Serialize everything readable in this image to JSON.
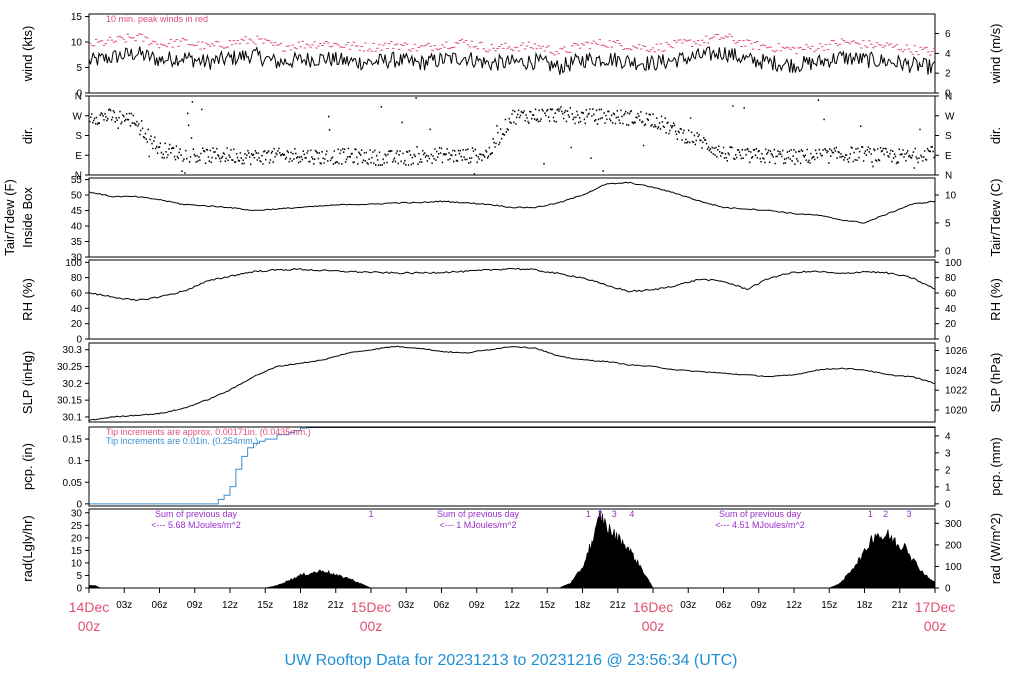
{
  "title": "UW Rooftop Data for 20231213  to  20231216 @ 23:56:34  (UTC)",
  "colors": {
    "peak": "#e0507a",
    "purple": "#9a2ec8",
    "blue": "#3a8fd0",
    "title": "#1f8fd6",
    "day": "#e05070",
    "pink": "#e0507a"
  },
  "chart_data": {
    "type": "line",
    "x_axis": {
      "hours": [
        0,
        3,
        6,
        9,
        12,
        15,
        18,
        21,
        24,
        27,
        30,
        33,
        36,
        39,
        42,
        45,
        48,
        51,
        54,
        57,
        60,
        63,
        66,
        69,
        72
      ],
      "range_hours": [
        0,
        72
      ],
      "minor_labels": [
        "03z",
        "06z",
        "09z",
        "12z",
        "15z",
        "18z",
        "21z",
        "03z",
        "06z",
        "09z",
        "12z",
        "15z",
        "18z",
        "21z",
        "03z",
        "06z",
        "09z",
        "12z",
        "15z",
        "18z",
        "21z"
      ],
      "minor_label_hours": [
        3,
        6,
        9,
        12,
        15,
        18,
        21,
        27,
        30,
        33,
        36,
        39,
        42,
        45,
        51,
        54,
        57,
        60,
        63,
        66,
        69
      ],
      "day_labels": [
        {
          "hour": 0,
          "date": "14Dec",
          "time": "00z"
        },
        {
          "hour": 24,
          "date": "15Dec",
          "time": "00z"
        },
        {
          "hour": 48,
          "date": "16Dec",
          "time": "00z"
        },
        {
          "hour": 72,
          "date": "17Dec",
          "time": "00z"
        }
      ]
    },
    "panels": [
      {
        "name": "wind",
        "ylabel_left": "wind (kts)",
        "ylabel_right": "wind (m/s)",
        "left_ticks": [
          0,
          5,
          10,
          15
        ],
        "right_ticks": [
          0,
          2,
          4,
          6
        ],
        "ylim": [
          0,
          15.5
        ],
        "annotation": "10 min. peak winds in red",
        "series": [
          {
            "name": "wind",
            "x": [
              0,
              2,
              4,
              6,
              8,
              10,
              12,
              14,
              16,
              18,
              20,
              22,
              24,
              26,
              28,
              30,
              32,
              34,
              36,
              38,
              40,
              42,
              44,
              46,
              48,
              50,
              52,
              54,
              56,
              58,
              60,
              62,
              64,
              66,
              68,
              70,
              72
            ],
            "y": [
              6.2,
              7.0,
              7.8,
              6.5,
              7.0,
              6.0,
              6.8,
              7.5,
              6.0,
              6.5,
              6.8,
              6.2,
              6.0,
              6.5,
              5.8,
              6.5,
              7.0,
              5.8,
              6.0,
              6.2,
              5.0,
              6.5,
              6.8,
              6.2,
              5.8,
              6.5,
              7.2,
              8.0,
              6.5,
              6.0,
              5.5,
              6.0,
              7.0,
              6.5,
              6.2,
              5.5,
              5.0
            ]
          },
          {
            "name": "10 min. peak winds",
            "x": [
              0,
              2,
              4,
              6,
              8,
              10,
              12,
              14,
              16,
              18,
              20,
              22,
              24,
              26,
              28,
              30,
              32,
              34,
              36,
              38,
              40,
              42,
              44,
              46,
              48,
              50,
              52,
              54,
              56,
              58,
              60,
              62,
              64,
              66,
              68,
              70,
              72
            ],
            "y": [
              9.5,
              10.2,
              11.0,
              9.5,
              10.0,
              9.0,
              9.8,
              10.5,
              9.0,
              9.5,
              9.8,
              9.2,
              9.0,
              9.5,
              8.8,
              9.5,
              10.0,
              8.8,
              9.0,
              9.2,
              8.0,
              9.5,
              9.8,
              9.2,
              8.8,
              9.5,
              10.2,
              11.0,
              9.5,
              9.0,
              8.5,
              9.0,
              10.0,
              9.5,
              9.2,
              8.5,
              8.0
            ]
          }
        ]
      },
      {
        "name": "dir",
        "ylabel_left": "dir.",
        "ylabel_right": "dir.",
        "left_ticks": [
          "N",
          "E",
          "S",
          "W",
          "N"
        ],
        "right_ticks": [
          "N",
          "E",
          "S",
          "W",
          "N"
        ],
        "ylim": [
          0,
          360
        ],
        "series": [
          {
            "name": "direction",
            "x": [
              0,
              2,
              3,
              4,
              6,
              8,
              10,
              12,
              14,
              16,
              18,
              20,
              22,
              24,
              26,
              28,
              30,
              32,
              34,
              36,
              38,
              40,
              42,
              44,
              46,
              48,
              50,
              52,
              54,
              56,
              58,
              60,
              62,
              64,
              66,
              68,
              70,
              72
            ],
            "y": [
              270,
              270,
              265,
              250,
              120,
              100,
              90,
              95,
              85,
              90,
              95,
              85,
              90,
              85,
              80,
              85,
              95,
              90,
              100,
              270,
              275,
              280,
              270,
              270,
              265,
              260,
              200,
              160,
              100,
              90,
              90,
              85,
              90,
              95,
              100,
              90,
              85,
              120
            ]
          }
        ]
      },
      {
        "name": "temp",
        "ylabel_left": "Tair/Tdew (F)",
        "ylabel_left2": "Inside Box",
        "ylabel_right": "Tair/Tdew (C)",
        "left_ticks": [
          30,
          35,
          40,
          45,
          50,
          55
        ],
        "right_ticks": [
          0,
          5,
          10
        ],
        "ylim": [
          30,
          55.5
        ],
        "series": [
          {
            "name": "Tair",
            "x": [
              0,
              2,
              4,
              6,
              8,
              10,
              12,
              14,
              16,
              18,
              20,
              22,
              24,
              26,
              28,
              30,
              32,
              34,
              36,
              38,
              40,
              42,
              44,
              46,
              48,
              50,
              52,
              54,
              56,
              58,
              60,
              62,
              64,
              66,
              68,
              70,
              72
            ],
            "y": [
              51,
              49.5,
              49.5,
              48.5,
              47,
              46.5,
              46,
              45,
              45.5,
              46,
              46.5,
              47,
              47,
              47.5,
              47.5,
              48,
              47.5,
              47,
              46,
              46,
              47.5,
              50,
              53.5,
              54,
              52.5,
              50.5,
              48,
              46,
              45.5,
              45,
              44,
              43.5,
              42,
              41,
              44,
              47,
              48
            ]
          }
        ]
      },
      {
        "name": "rh",
        "ylabel_left": "RH (%)",
        "ylabel_right": "RH (%)",
        "left_ticks": [
          0,
          20,
          40,
          60,
          80,
          100
        ],
        "right_ticks": [
          0,
          20,
          40,
          60,
          80,
          100
        ],
        "ylim": [
          0,
          103
        ],
        "series": [
          {
            "name": "RH",
            "x": [
              0,
              2,
              4,
              6,
              8,
              10,
              12,
              14,
              16,
              18,
              20,
              22,
              24,
              26,
              28,
              30,
              32,
              34,
              36,
              38,
              40,
              42,
              44,
              46,
              48,
              50,
              52,
              54,
              56,
              58,
              60,
              62,
              64,
              66,
              68,
              70,
              72
            ],
            "y": [
              60,
              55,
              50,
              55,
              62,
              75,
              82,
              88,
              90,
              91,
              89,
              88,
              87,
              86,
              86,
              87,
              88,
              90,
              92,
              90,
              85,
              80,
              70,
              62,
              64,
              70,
              78,
              75,
              65,
              80,
              87,
              88,
              85,
              88,
              86,
              80,
              65
            ]
          }
        ]
      },
      {
        "name": "slp",
        "ylabel_left": "SLP (inHg)",
        "ylabel_right": "SLP (hPa)",
        "left_ticks": [
          30.1,
          30.15,
          30.2,
          30.25,
          30.3
        ],
        "right_ticks": [
          1020,
          1022,
          1024,
          1026
        ],
        "ylim": [
          30.085,
          30.32
        ],
        "series": [
          {
            "name": "SLP",
            "x": [
              0,
              2,
              4,
              6,
              8,
              10,
              12,
              14,
              16,
              18,
              20,
              22,
              24,
              26,
              28,
              30,
              32,
              34,
              36,
              38,
              40,
              42,
              44,
              46,
              48,
              50,
              52,
              54,
              56,
              58,
              60,
              62,
              64,
              66,
              68,
              70,
              72
            ],
            "y": [
              30.09,
              30.1,
              30.105,
              30.11,
              30.125,
              30.15,
              30.18,
              30.22,
              30.25,
              30.26,
              30.27,
              30.29,
              30.3,
              30.31,
              30.305,
              30.295,
              30.29,
              30.3,
              30.31,
              30.305,
              30.28,
              30.27,
              30.265,
              30.255,
              30.25,
              30.24,
              30.235,
              30.23,
              30.225,
              30.22,
              30.225,
              30.24,
              30.245,
              30.24,
              30.225,
              30.22,
              30.2
            ]
          }
        ]
      },
      {
        "name": "pcp",
        "ylabel_left": "pcp. (in)",
        "ylabel_right": "pcp. (mm)",
        "left_ticks": [
          0,
          0.05,
          0.1,
          0.15
        ],
        "right_ticks": [
          0,
          1,
          2,
          3,
          4
        ],
        "ylim": [
          -0.005,
          0.178
        ],
        "annotation_pink": "Tip increments are approx. 0.00171in. (0.0435mm.)",
        "annotation_blue": "Tip increments are 0.01in. (0.254mm.)",
        "series": [
          {
            "name": "precip",
            "x": [
              0,
              10.5,
              11,
              11.5,
              12,
              12.5,
              13,
              13.5,
              14,
              14.5,
              15,
              16,
              17,
              17.5,
              18,
              18.5,
              72
            ],
            "y": [
              0,
              0,
              0.01,
              0.02,
              0.04,
              0.08,
              0.11,
              0.13,
              0.14,
              0.145,
              0.15,
              0.16,
              0.165,
              0.17,
              0.175,
              0.177,
              0.177
            ]
          }
        ]
      },
      {
        "name": "rad",
        "ylabel_left": "rad(Lgly/hr)",
        "ylabel_right": "rad (W/m^2)",
        "left_ticks": [
          0,
          5,
          10,
          15,
          20,
          25,
          30
        ],
        "right_ticks": [
          0,
          100,
          200,
          300
        ],
        "ylim": [
          0,
          31.5
        ],
        "annotations": [
          {
            "hour": 8,
            "line1": "Sum of previous day",
            "line2": "<--- 5.68 MJoules/m^2"
          },
          {
            "hour": 32,
            "line1": "Sum of previous day",
            "line2": "<--- 1 MJoules/m^2"
          },
          {
            "hour": 56,
            "line1": "Sum of previous day",
            "line2": "<--- 4.51 MJoules/m^2"
          }
        ],
        "markers": [
          {
            "hour": 24,
            "label": "1"
          },
          {
            "hour": 42.5,
            "label": "1"
          },
          {
            "hour": 43.5,
            "label": "2"
          },
          {
            "hour": 44.7,
            "label": "3"
          },
          {
            "hour": 46.2,
            "label": "4"
          },
          {
            "hour": 66.5,
            "label": "1"
          },
          {
            "hour": 67.8,
            "label": "2"
          },
          {
            "hour": 69.8,
            "label": "3"
          }
        ],
        "series": [
          {
            "name": "radiation",
            "x": [
              0,
              0.5,
              1,
              15,
              16,
              17,
              18,
              19,
              20,
              21,
              22,
              23,
              24,
              40,
              41,
              42,
              42.5,
              43,
              43.5,
              44,
              44.5,
              45,
              45.5,
              46,
              47,
              48,
              63,
              64,
              65,
              66,
              66.5,
              67,
              67.5,
              68,
              68.5,
              69,
              69.5,
              70,
              71,
              72
            ],
            "y": [
              1,
              1,
              0,
              0,
              1,
              3,
              5,
              6,
              7,
              5,
              4,
              2,
              0,
              0,
              2,
              8,
              15,
              20,
              29,
              25,
              22,
              20,
              18,
              15,
              8,
              0,
              0,
              2,
              8,
              14,
              19,
              22,
              20,
              21,
              19,
              16,
              18,
              12,
              6,
              2
            ]
          }
        ]
      }
    ]
  }
}
